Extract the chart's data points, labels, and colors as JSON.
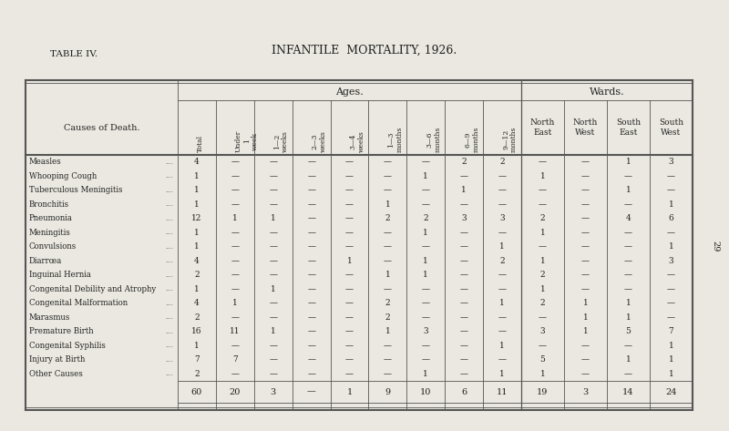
{
  "title": "INFANTILE  MORTALITY, 1926.",
  "table_label": "TABLE IV.",
  "page_number": "29",
  "col_header_group1": "Ages.",
  "col_header_group2": "Wards.",
  "col_headers_rotated": [
    "Total",
    "Under\n1\nweek",
    "1—2\nweeks",
    "2—3\nweeks",
    "3—4\nweeks",
    "1—3\nmonths",
    "3—6\nmonths",
    "6—9\nmonths",
    "9—12\nmonths"
  ],
  "ward_headers": [
    "North\nEast",
    "North\nWest",
    "South\nEast",
    "South\nWest"
  ],
  "row_label_header": "Causes of Death.",
  "causes": [
    "Measles",
    "Whooping Cough",
    "Tuberculous Meningitis",
    "Bronchitis",
    "Pneumonia",
    "Meningitis",
    "Convulsions",
    "Diarrœa",
    "Inguinal Hernia",
    "Congenital Debility and Atrophy",
    "Congenital Malformation",
    "Marasmus",
    "Premature Birth",
    "Congenital Syphilis",
    "Injury at Birth",
    "Other Causes"
  ],
  "data": [
    [
      4,
      0,
      0,
      0,
      0,
      0,
      0,
      2,
      2,
      0,
      0,
      1,
      3
    ],
    [
      1,
      0,
      0,
      0,
      0,
      0,
      1,
      0,
      0,
      1,
      0,
      0,
      0
    ],
    [
      1,
      0,
      0,
      0,
      0,
      0,
      0,
      1,
      0,
      0,
      0,
      1,
      0
    ],
    [
      1,
      0,
      0,
      0,
      0,
      1,
      0,
      0,
      0,
      0,
      0,
      0,
      1
    ],
    [
      12,
      1,
      1,
      0,
      0,
      2,
      2,
      3,
      3,
      2,
      0,
      4,
      6
    ],
    [
      1,
      0,
      0,
      0,
      0,
      0,
      1,
      0,
      0,
      1,
      0,
      0,
      0
    ],
    [
      1,
      0,
      0,
      0,
      0,
      0,
      0,
      0,
      1,
      0,
      0,
      0,
      1
    ],
    [
      4,
      0,
      0,
      0,
      1,
      0,
      1,
      0,
      2,
      1,
      0,
      0,
      3
    ],
    [
      2,
      0,
      0,
      0,
      0,
      1,
      1,
      0,
      0,
      2,
      0,
      0,
      0
    ],
    [
      1,
      0,
      1,
      0,
      0,
      0,
      0,
      0,
      0,
      1,
      0,
      0,
      0
    ],
    [
      4,
      1,
      0,
      0,
      0,
      2,
      0,
      0,
      1,
      2,
      1,
      1,
      0
    ],
    [
      2,
      0,
      0,
      0,
      0,
      2,
      0,
      0,
      0,
      0,
      1,
      1,
      0
    ],
    [
      16,
      11,
      1,
      0,
      0,
      1,
      3,
      0,
      0,
      3,
      1,
      5,
      7
    ],
    [
      1,
      0,
      0,
      0,
      0,
      0,
      0,
      0,
      1,
      0,
      0,
      0,
      1
    ],
    [
      7,
      7,
      0,
      0,
      0,
      0,
      0,
      0,
      0,
      5,
      0,
      1,
      1
    ],
    [
      2,
      0,
      0,
      0,
      0,
      0,
      1,
      0,
      1,
      1,
      0,
      0,
      1
    ]
  ],
  "totals": [
    60,
    20,
    3,
    0,
    1,
    9,
    10,
    6,
    11,
    19,
    3,
    14,
    24
  ],
  "bg_color": "#eae8e0",
  "line_color": "#555555",
  "text_color": "#222222"
}
